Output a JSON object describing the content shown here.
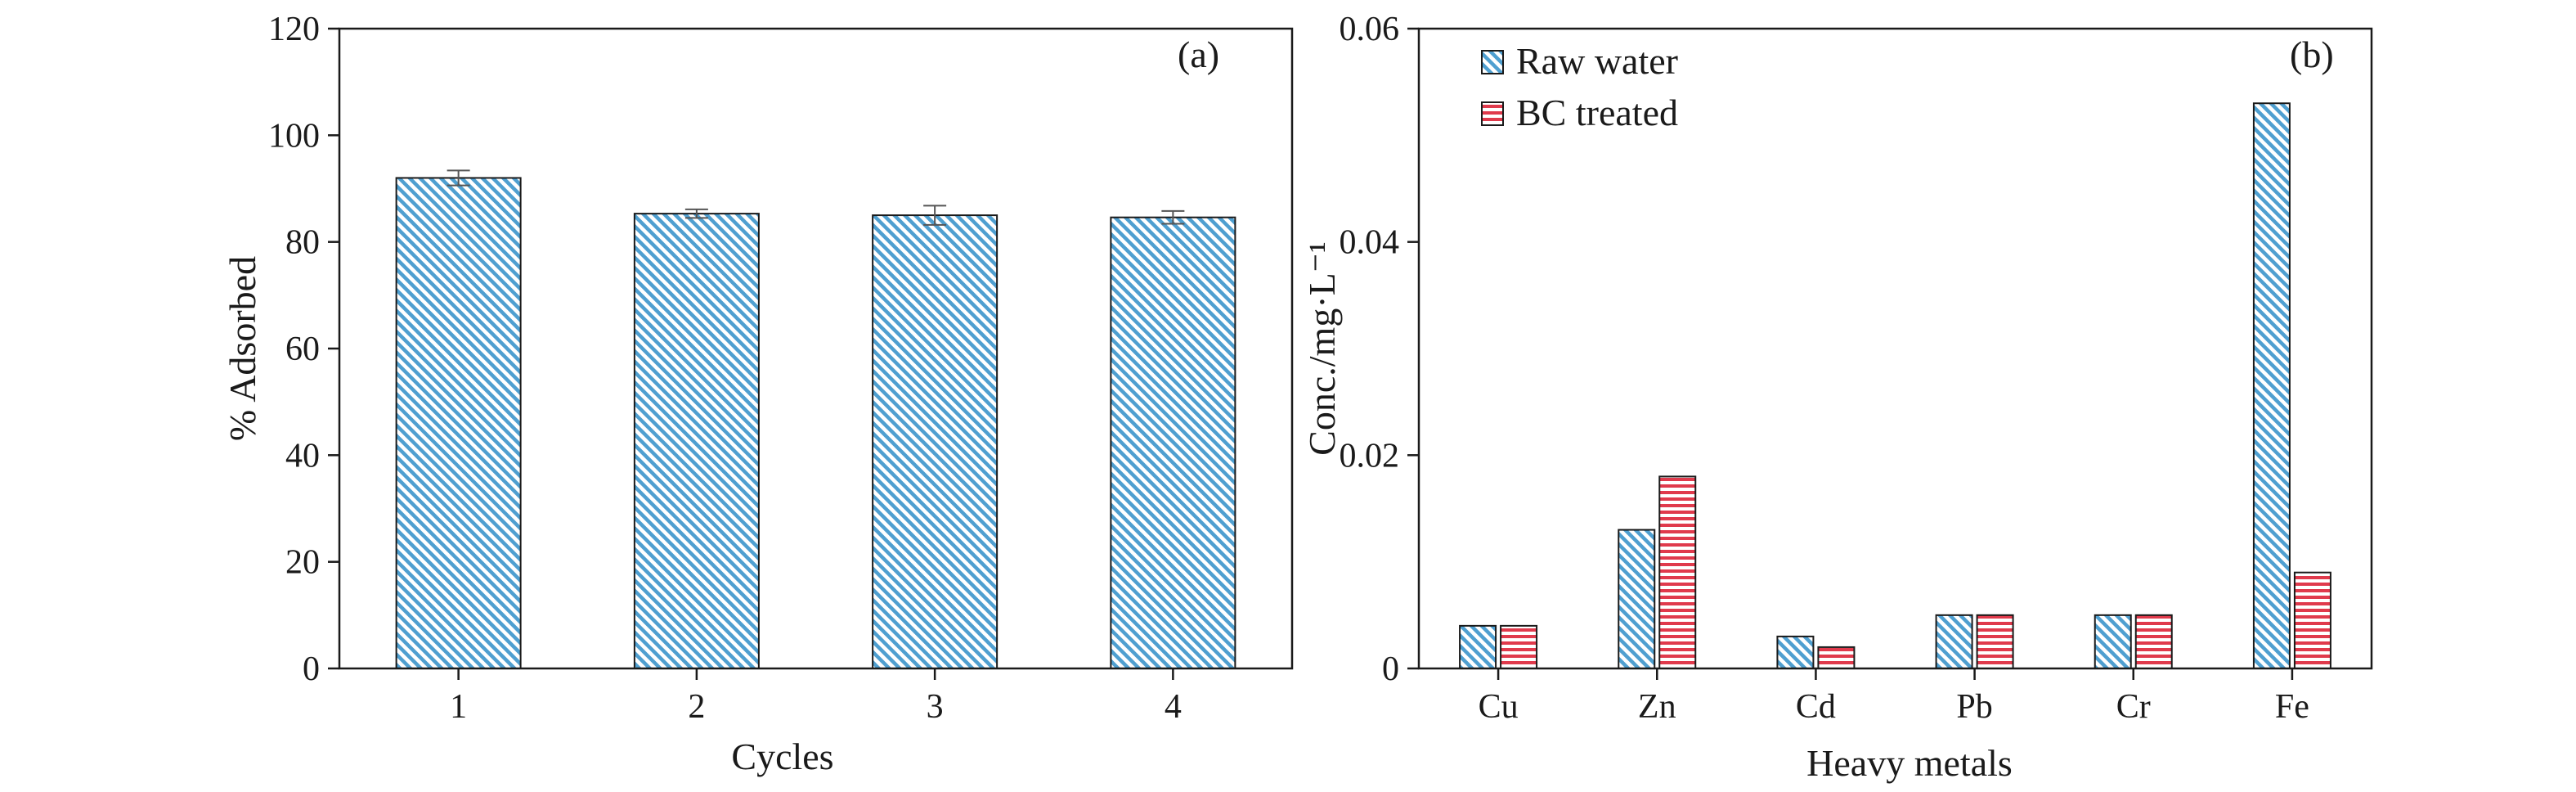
{
  "chart_data": [
    {
      "type": "bar",
      "panel_label": "(a)",
      "categories": [
        "1",
        "2",
        "3",
        "4"
      ],
      "values": [
        92,
        85.3,
        85,
        84.6
      ],
      "errors": [
        1.4,
        0.8,
        1.8,
        1.2
      ],
      "xlabel": "Cycles",
      "ylabel": "% Adsorbed",
      "ylim": [
        0,
        120
      ],
      "yticks": [
        "0",
        "20",
        "40",
        "60",
        "80",
        "100",
        "120"
      ],
      "bar_color": "#4f9fd0",
      "grid": false
    },
    {
      "type": "bar",
      "panel_label": "(b)",
      "categories": [
        "Cu",
        "Zn",
        "Cd",
        "Pb",
        "Cr",
        "Fe"
      ],
      "series": [
        {
          "name": "Raw water",
          "values": [
            0.004,
            0.013,
            0.003,
            0.005,
            0.005,
            0.053
          ],
          "color": "#4f9fd0"
        },
        {
          "name": "BC treated",
          "values": [
            0.004,
            0.018,
            0.002,
            0.005,
            0.005,
            0.009
          ],
          "color": "#e03a4c"
        }
      ],
      "xlabel": "Heavy metals",
      "ylabel": "Conc./mg·L⁻¹",
      "ylim": [
        0,
        0.06
      ],
      "yticks": [
        "0",
        "0.02",
        "0.04",
        "0.06"
      ],
      "legend_position": "top-left",
      "grid": false
    }
  ]
}
